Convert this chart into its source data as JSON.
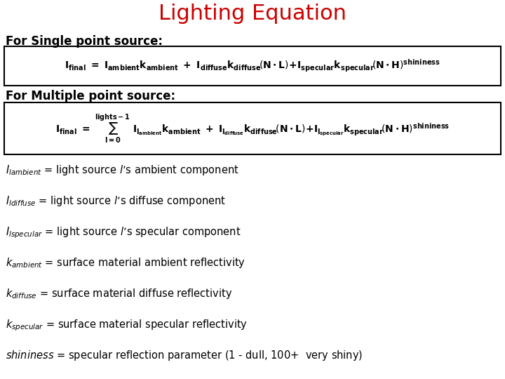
{
  "title": "Lighting Equation",
  "title_color": "#cc0000",
  "title_fontsize": 22,
  "bg_color": "#ffffff",
  "text_color": "#000000",
  "single_label": "For Single point source:",
  "multiple_label": "For Multiple point source:",
  "label_fontsize": 12,
  "eq_fontsize": 10,
  "desc_fontsize": 10.5,
  "desc_items": [
    [
      "$I_{lambient}$",
      " = light source ",
      "$l$",
      "’s ambient component"
    ],
    [
      "$I_{ldiffuse}$",
      " = light source ",
      "$l$",
      "’s diffuse component"
    ],
    [
      "$I_{lspecular}$",
      " = light source ",
      "$l$",
      "’s specular component"
    ],
    [
      "$k_{ambient}$",
      " = surface material ambient reflectivity"
    ],
    [
      "$k_{diffuse}$",
      " = surface material diffuse reflectivity"
    ],
    [
      "$k_{specular}$",
      " = surface material specular reflectivity"
    ],
    [
      "$shininess$",
      " = specular reflection parameter (1 - dull, 100+  very shiny)"
    ]
  ]
}
